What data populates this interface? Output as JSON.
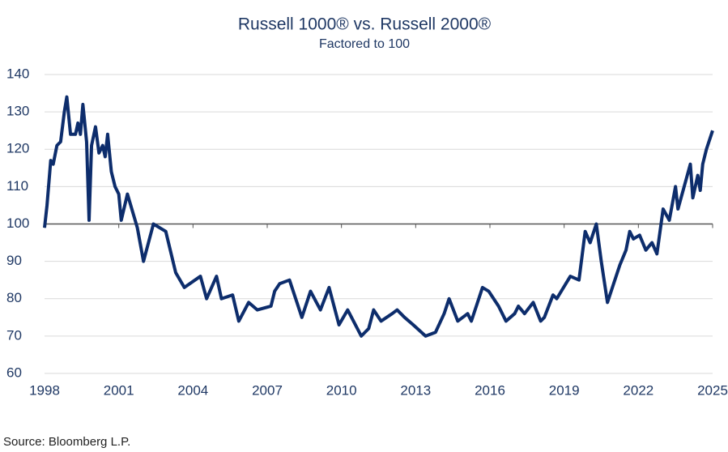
{
  "chart_data": {
    "type": "line",
    "title": "Russell 1000® vs. Russell 2000®",
    "subtitle": "Factored to 100",
    "source": "Source: Bloomberg L.P.",
    "xlim": [
      1998,
      2025
    ],
    "xticks": [
      1998,
      2001,
      2004,
      2007,
      2010,
      2013,
      2016,
      2019,
      2022,
      2025
    ],
    "ylim": [
      60,
      140
    ],
    "yticks": [
      60,
      70,
      80,
      90,
      100,
      110,
      120,
      130,
      140
    ],
    "grid": true,
    "baseline": 100,
    "x": [
      1998.0,
      1998.1,
      1998.25,
      1998.35,
      1998.5,
      1998.65,
      1998.8,
      1998.9,
      1999.05,
      1999.25,
      1999.35,
      1999.45,
      1999.55,
      1999.7,
      1999.8,
      1999.9,
      2000.06,
      2000.2,
      2000.35,
      2000.45,
      2000.55,
      2000.7,
      2000.85,
      2001.0,
      2001.1,
      2001.35,
      2001.75,
      2002.0,
      2002.4,
      2002.9,
      2003.3,
      2003.65,
      2004.3,
      2004.55,
      2004.95,
      2005.15,
      2005.6,
      2005.85,
      2006.25,
      2006.6,
      2007.15,
      2007.3,
      2007.5,
      2007.9,
      2008.15,
      2008.4,
      2008.75,
      2009.15,
      2009.5,
      2009.9,
      2010.25,
      2010.8,
      2011.1,
      2011.3,
      2011.6,
      2012.05,
      2012.25,
      2012.55,
      2012.9,
      2013.4,
      2013.8,
      2014.15,
      2014.35,
      2014.7,
      2015.1,
      2015.25,
      2015.5,
      2015.7,
      2015.95,
      2016.35,
      2016.65,
      2017.0,
      2017.15,
      2017.4,
      2017.75,
      2018.05,
      2018.2,
      2018.55,
      2018.7,
      2019.25,
      2019.6,
      2019.85,
      2020.05,
      2020.3,
      2020.5,
      2020.75,
      2021.0,
      2021.25,
      2021.5,
      2021.65,
      2021.8,
      2022.05,
      2022.3,
      2022.55,
      2022.75,
      2023.0,
      2023.25,
      2023.5,
      2023.6,
      2023.85,
      2024.1,
      2024.2,
      2024.4,
      2024.5,
      2024.6,
      2024.75,
      2025.0
    ],
    "series": [
      {
        "color": "#0d2d6c",
        "values": [
          99,
          105,
          117,
          116,
          121,
          122,
          130,
          134,
          124,
          124,
          127,
          124,
          132,
          122,
          101,
          121,
          126,
          119,
          121,
          118,
          124,
          114,
          110,
          108,
          101,
          108,
          99,
          90,
          100,
          98,
          87,
          83,
          86,
          80,
          86,
          80,
          81,
          74,
          79,
          77,
          78,
          82,
          84,
          85,
          80,
          75,
          82,
          77,
          83,
          73,
          77,
          70,
          72,
          77,
          74,
          76,
          77,
          75,
          73,
          70,
          71,
          76,
          80,
          74,
          76,
          74,
          79,
          83,
          82,
          78,
          74,
          76,
          78,
          76,
          79,
          74,
          75,
          81,
          80,
          86,
          85,
          98,
          95,
          100,
          90,
          79,
          84,
          89,
          93,
          98,
          96,
          97,
          93,
          95,
          92,
          104,
          101,
          110,
          104,
          110,
          116,
          107,
          113,
          109,
          116,
          120,
          125
        ]
      }
    ]
  }
}
